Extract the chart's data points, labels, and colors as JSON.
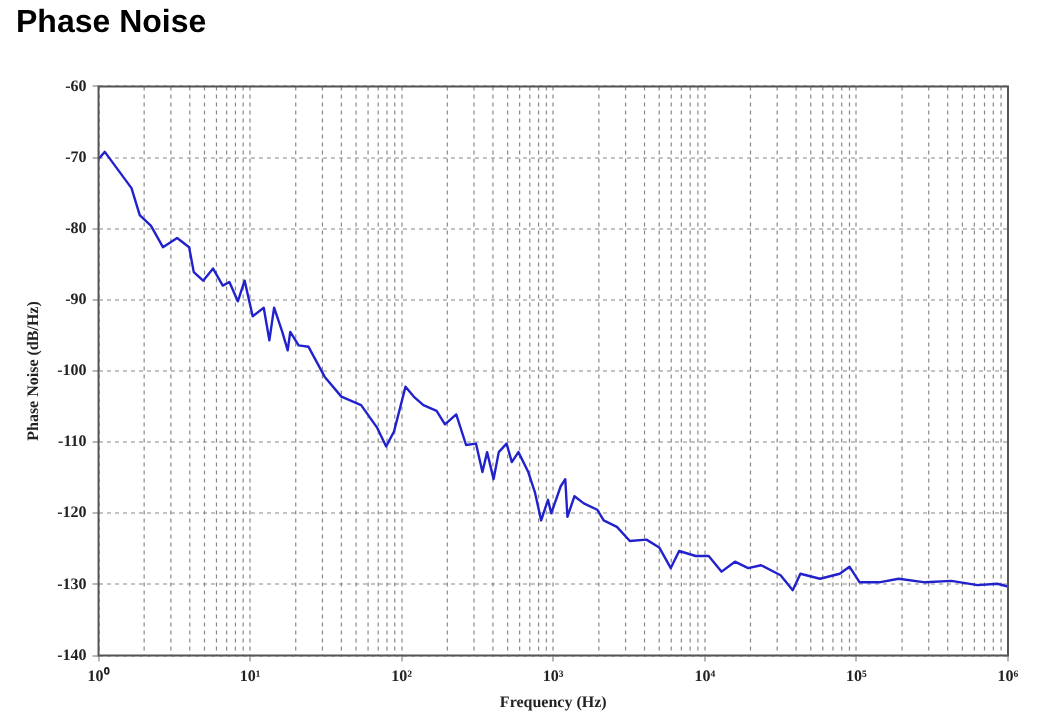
{
  "chart_data": {
    "type": "line",
    "title": "Phase Noise",
    "xlabel": "Frequency (Hz)",
    "ylabel": "Phase Noise (dB/Hz)",
    "log": "x",
    "grid": true,
    "legend": false,
    "marker": "none",
    "line_style": "solid",
    "xlim": [
      1,
      1000000
    ],
    "xticks": [
      {
        "value": 1,
        "label": "10⁰"
      },
      {
        "value": 10,
        "label": "10¹"
      },
      {
        "value": 100,
        "label": "10²"
      },
      {
        "value": 1000,
        "label": "10³"
      },
      {
        "value": 10000,
        "label": "10⁴"
      },
      {
        "value": 100000,
        "label": "10⁵"
      },
      {
        "value": 1000000,
        "label": "10⁶"
      }
    ],
    "ylim": [
      -140,
      -60
    ],
    "yticks": [
      -140,
      -130,
      -120,
      -110,
      -100,
      -90,
      -80,
      -70,
      -60
    ],
    "series": [
      {
        "color": "#2222cc",
        "x": [
          1,
          1.1,
          1.65,
          1.87,
          2.22,
          2.66,
          3.3,
          3.96,
          4.25,
          4.9,
          5.7,
          6.6,
          7.3,
          8.3,
          9.2,
          10.4,
          12.3,
          13.4,
          14.4,
          16.3,
          17.7,
          18.4,
          20.9,
          24.3,
          31,
          40,
          54,
          69,
          79,
          89,
          106,
          120,
          139,
          170,
          193,
          229,
          266,
          309,
          341,
          366,
          404,
          437,
          492,
          533,
          589,
          684,
          758,
          832,
          923,
          970,
          1120,
          1200,
          1240,
          1380,
          1590,
          1950,
          2150,
          2630,
          3200,
          4120,
          5000,
          5960,
          6770,
          8700,
          10600,
          12900,
          15800,
          19300,
          23500,
          31600,
          38000,
          42700,
          57500,
          77600,
          90000,
          105000,
          141000,
          190000,
          284000,
          423000,
          631000,
          850000,
          1000000
        ],
        "values": [
          -70.2,
          -69.2,
          -74.3,
          -78.1,
          -79.6,
          -82.6,
          -81.3,
          -82.6,
          -86.1,
          -87.3,
          -85.6,
          -88,
          -87.5,
          -90.2,
          -87.3,
          -92.3,
          -91.1,
          -95.7,
          -91.1,
          -94.5,
          -97.1,
          -94.5,
          -96.4,
          -96.6,
          -100.8,
          -103.6,
          -104.8,
          -108,
          -110.6,
          -108.5,
          -102.2,
          -103.6,
          -104.8,
          -105.6,
          -107.5,
          -106.1,
          -110.4,
          -110.2,
          -114.2,
          -111.4,
          -115.2,
          -111.4,
          -110.2,
          -112.8,
          -111.4,
          -114.2,
          -117.1,
          -121,
          -118.1,
          -120,
          -116.2,
          -115.2,
          -120.5,
          -117.6,
          -118.6,
          -119.5,
          -121,
          -121.9,
          -123.9,
          -123.7,
          -124.8,
          -127.7,
          -125.3,
          -126,
          -126,
          -128.2,
          -126.8,
          -127.7,
          -127.3,
          -128.7,
          -130.8,
          -128.5,
          -129.2,
          -128.5,
          -127.5,
          -129.7,
          -129.7,
          -129.2,
          -129.7,
          -129.5,
          -130.1,
          -129.9,
          -130.3
        ]
      }
    ]
  }
}
